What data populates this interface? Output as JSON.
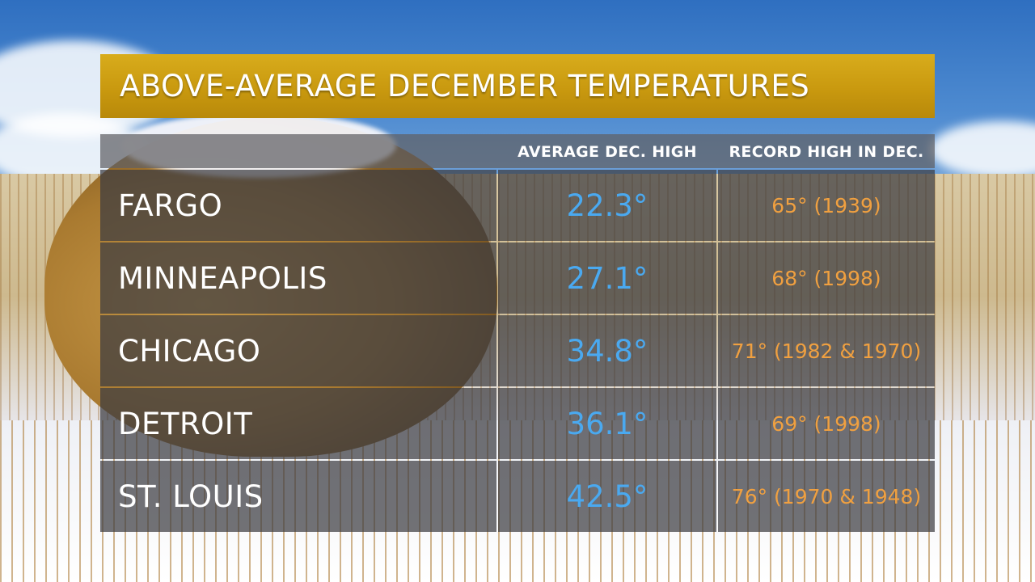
{
  "title": "ABOVE-AVERAGE DECEMBER TEMPERATURES",
  "colors": {
    "title_bar": "#c9990f",
    "city_text": "#ffffff",
    "average_text": "#4aa9f0",
    "record_text": "#f0a040"
  },
  "chart_data": {
    "type": "table",
    "title": "ABOVE-AVERAGE DECEMBER TEMPERATURES",
    "columns": [
      "",
      "AVERAGE DEC. HIGH",
      "RECORD HIGH IN DEC."
    ],
    "rows": [
      {
        "city": "FARGO",
        "average_high": "22.3°",
        "record_high": "65° (1939)"
      },
      {
        "city": "MINNEAPOLIS",
        "average_high": "27.1°",
        "record_high": "68° (1998)"
      },
      {
        "city": "CHICAGO",
        "average_high": "34.8°",
        "record_high": "71° (1982 & 1970)"
      },
      {
        "city": "DETROIT",
        "average_high": "36.1°",
        "record_high": "69° (1998)"
      },
      {
        "city": "ST. LOUIS",
        "average_high": "42.5°",
        "record_high": "76° (1970 & 1948)"
      }
    ],
    "values": {
      "average_high_f": [
        22.3,
        27.1,
        34.8,
        36.1,
        42.5
      ],
      "record_high_f": [
        65,
        68,
        71,
        69,
        76
      ]
    }
  }
}
